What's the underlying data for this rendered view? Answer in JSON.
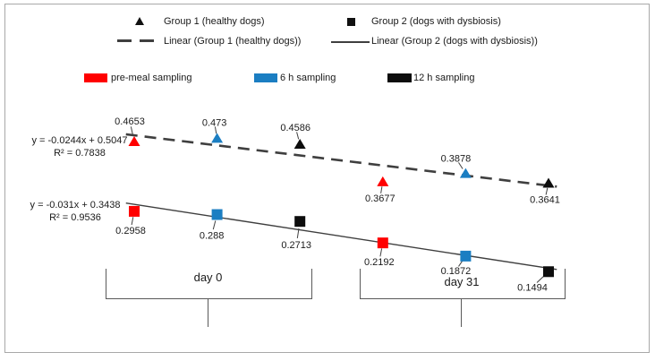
{
  "legend": {
    "group1": "Group 1 (healthy dogs)",
    "group2": "Group 2 (dogs with dysbiosis)",
    "linear1": "Linear (Group 1 (healthy dogs))",
    "linear2": "Linear (Group 2 (dogs with dysbiosis))",
    "samplings": [
      {
        "label": "pre-meal sampling",
        "color": "#ff0000"
      },
      {
        "label": "6 h sampling",
        "color": "#1b7ec2"
      },
      {
        "label": "12 h sampling",
        "color": "#0d0d0d"
      }
    ]
  },
  "chart_data": {
    "type": "scatter",
    "x_slots": [
      "day 0 pre-meal",
      "day 0 6 h",
      "day 0 12 h",
      "day 31 pre-meal",
      "day 31 6 h",
      "day 31 12 h"
    ],
    "groups_axis": [
      {
        "label": "day 0"
      },
      {
        "label": "day 31"
      }
    ],
    "point_colors": [
      "#ff0000",
      "#1b7ec2",
      "#0d0d0d",
      "#ff0000",
      "#1b7ec2",
      "#0d0d0d"
    ],
    "line_color": "#3f3f3f",
    "series": [
      {
        "name": "Group 1 (healthy dogs)",
        "marker": "triangle",
        "values": [
          0.4653,
          0.473,
          0.4586,
          0.3677,
          0.3878,
          0.3641
        ],
        "labels": [
          "0.4653",
          "0.473",
          "0.4586",
          "0.3677",
          "0.3878",
          "0.3641"
        ],
        "label_offsets": [
          [
            -5,
            -23
          ],
          [
            -3,
            -18
          ],
          [
            -5,
            -19
          ],
          [
            -3,
            18
          ],
          [
            -11,
            -17
          ],
          [
            -4,
            18
          ]
        ],
        "trend": {
          "equation": "y = -0.0244x + 0.5047",
          "r2": "R² = 0.7838",
          "slope": -0.0244,
          "intercept": 0.5047,
          "style": "dashed"
        }
      },
      {
        "name": "Group 2 (dogs with dysbiosis)",
        "marker": "square",
        "values": [
          0.2958,
          0.288,
          0.2713,
          0.2192,
          0.1872,
          0.1494
        ],
        "labels": [
          "0.2958",
          "0.288",
          "0.2713",
          "0.2192",
          "0.1872",
          "0.1494"
        ],
        "label_offsets": [
          [
            -4,
            21
          ],
          [
            -6,
            23
          ],
          [
            -4,
            26
          ],
          [
            -4,
            21
          ],
          [
            -11,
            16
          ],
          [
            -18,
            17
          ]
        ],
        "trend": {
          "equation": "y = -0.031x + 0.3438",
          "r2": "R² = 0.9536",
          "slope": -0.031,
          "intercept": 0.3438,
          "style": "solid"
        }
      }
    ]
  }
}
